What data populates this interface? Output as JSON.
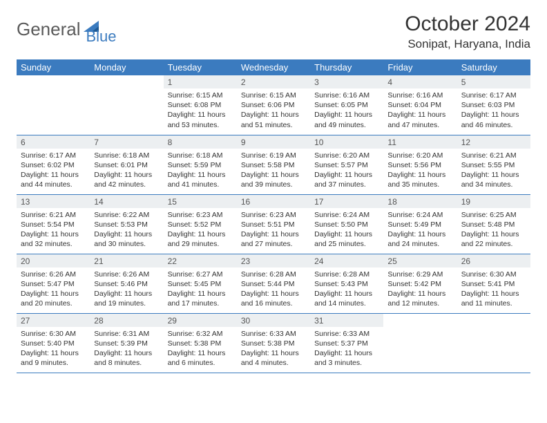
{
  "brand": {
    "part1": "General",
    "part2": "Blue"
  },
  "title": {
    "month": "October 2024",
    "location": "Sonipat, Haryana, India"
  },
  "colors": {
    "header_bg": "#3b7bbf",
    "header_text": "#ffffff",
    "daynum_bg": "#eceff1",
    "border": "#3b7bbf"
  },
  "daynames": [
    "Sunday",
    "Monday",
    "Tuesday",
    "Wednesday",
    "Thursday",
    "Friday",
    "Saturday"
  ],
  "first_weekday_index": 2,
  "days": [
    {
      "n": "1",
      "sr": "6:15 AM",
      "ss": "6:08 PM",
      "dl": "11 hours and 53 minutes."
    },
    {
      "n": "2",
      "sr": "6:15 AM",
      "ss": "6:06 PM",
      "dl": "11 hours and 51 minutes."
    },
    {
      "n": "3",
      "sr": "6:16 AM",
      "ss": "6:05 PM",
      "dl": "11 hours and 49 minutes."
    },
    {
      "n": "4",
      "sr": "6:16 AM",
      "ss": "6:04 PM",
      "dl": "11 hours and 47 minutes."
    },
    {
      "n": "5",
      "sr": "6:17 AM",
      "ss": "6:03 PM",
      "dl": "11 hours and 46 minutes."
    },
    {
      "n": "6",
      "sr": "6:17 AM",
      "ss": "6:02 PM",
      "dl": "11 hours and 44 minutes."
    },
    {
      "n": "7",
      "sr": "6:18 AM",
      "ss": "6:01 PM",
      "dl": "11 hours and 42 minutes."
    },
    {
      "n": "8",
      "sr": "6:18 AM",
      "ss": "5:59 PM",
      "dl": "11 hours and 41 minutes."
    },
    {
      "n": "9",
      "sr": "6:19 AM",
      "ss": "5:58 PM",
      "dl": "11 hours and 39 minutes."
    },
    {
      "n": "10",
      "sr": "6:20 AM",
      "ss": "5:57 PM",
      "dl": "11 hours and 37 minutes."
    },
    {
      "n": "11",
      "sr": "6:20 AM",
      "ss": "5:56 PM",
      "dl": "11 hours and 35 minutes."
    },
    {
      "n": "12",
      "sr": "6:21 AM",
      "ss": "5:55 PM",
      "dl": "11 hours and 34 minutes."
    },
    {
      "n": "13",
      "sr": "6:21 AM",
      "ss": "5:54 PM",
      "dl": "11 hours and 32 minutes."
    },
    {
      "n": "14",
      "sr": "6:22 AM",
      "ss": "5:53 PM",
      "dl": "11 hours and 30 minutes."
    },
    {
      "n": "15",
      "sr": "6:23 AM",
      "ss": "5:52 PM",
      "dl": "11 hours and 29 minutes."
    },
    {
      "n": "16",
      "sr": "6:23 AM",
      "ss": "5:51 PM",
      "dl": "11 hours and 27 minutes."
    },
    {
      "n": "17",
      "sr": "6:24 AM",
      "ss": "5:50 PM",
      "dl": "11 hours and 25 minutes."
    },
    {
      "n": "18",
      "sr": "6:24 AM",
      "ss": "5:49 PM",
      "dl": "11 hours and 24 minutes."
    },
    {
      "n": "19",
      "sr": "6:25 AM",
      "ss": "5:48 PM",
      "dl": "11 hours and 22 minutes."
    },
    {
      "n": "20",
      "sr": "6:26 AM",
      "ss": "5:47 PM",
      "dl": "11 hours and 20 minutes."
    },
    {
      "n": "21",
      "sr": "6:26 AM",
      "ss": "5:46 PM",
      "dl": "11 hours and 19 minutes."
    },
    {
      "n": "22",
      "sr": "6:27 AM",
      "ss": "5:45 PM",
      "dl": "11 hours and 17 minutes."
    },
    {
      "n": "23",
      "sr": "6:28 AM",
      "ss": "5:44 PM",
      "dl": "11 hours and 16 minutes."
    },
    {
      "n": "24",
      "sr": "6:28 AM",
      "ss": "5:43 PM",
      "dl": "11 hours and 14 minutes."
    },
    {
      "n": "25",
      "sr": "6:29 AM",
      "ss": "5:42 PM",
      "dl": "11 hours and 12 minutes."
    },
    {
      "n": "26",
      "sr": "6:30 AM",
      "ss": "5:41 PM",
      "dl": "11 hours and 11 minutes."
    },
    {
      "n": "27",
      "sr": "6:30 AM",
      "ss": "5:40 PM",
      "dl": "11 hours and 9 minutes."
    },
    {
      "n": "28",
      "sr": "6:31 AM",
      "ss": "5:39 PM",
      "dl": "11 hours and 8 minutes."
    },
    {
      "n": "29",
      "sr": "6:32 AM",
      "ss": "5:38 PM",
      "dl": "11 hours and 6 minutes."
    },
    {
      "n": "30",
      "sr": "6:33 AM",
      "ss": "5:38 PM",
      "dl": "11 hours and 4 minutes."
    },
    {
      "n": "31",
      "sr": "6:33 AM",
      "ss": "5:37 PM",
      "dl": "11 hours and 3 minutes."
    }
  ],
  "labels": {
    "sunrise": "Sunrise:",
    "sunset": "Sunset:",
    "daylight": "Daylight:"
  }
}
